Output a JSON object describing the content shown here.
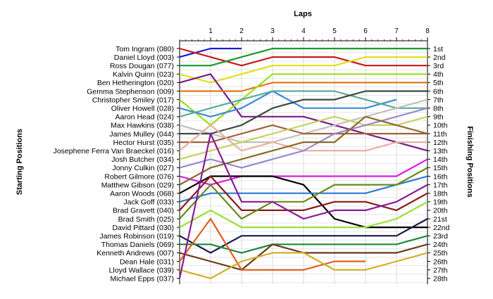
{
  "chart_data": {
    "type": "line",
    "title": "Laps",
    "xlabel": "Laps",
    "ylabel_left": "Starting Positions",
    "ylabel_right": "Finishing Positions",
    "x_ticks": [
      1,
      2,
      3,
      4,
      5,
      6,
      7,
      8
    ],
    "xlim": [
      0,
      8
    ],
    "ylim": [
      1,
      28
    ],
    "grid": true,
    "finish_labels": [
      "1st",
      "2nd",
      "3rd",
      "4th",
      "5th",
      "6th",
      "7th",
      "8th",
      "9th",
      "10th",
      "11th",
      "12th",
      "13th",
      "14th",
      "15th",
      "16th",
      "17th",
      "18th",
      "19th",
      "20th",
      "21st",
      "22nd",
      "23rd",
      "24th",
      "25th",
      "26th",
      "27th",
      "28th"
    ],
    "series": [
      {
        "name": "Tom Ingram (080)",
        "color": "#1a1acc",
        "positions": [
          2,
          1,
          1
        ]
      },
      {
        "name": "Daniel Lloyd (003)",
        "color": "#cc1a1a",
        "positions": [
          1,
          2,
          3,
          2,
          2,
          2,
          3,
          3,
          3
        ]
      },
      {
        "name": "Ross Dougan (077)",
        "color": "#1a9a2a",
        "positions": [
          3,
          3,
          2,
          1,
          1,
          1,
          1,
          1,
          1
        ]
      },
      {
        "name": "Kalvin Quinn (023)",
        "color": "#e0e01a",
        "positions": [
          4,
          5,
          4,
          3,
          3,
          3,
          2,
          2,
          2
        ]
      },
      {
        "name": "Ben Hetherington (020)",
        "color": "#7a1a8a",
        "positions": [
          5,
          4,
          9,
          9,
          9,
          10,
          11,
          12,
          13
        ]
      },
      {
        "name": "Gemma Stephenson (009)",
        "color": "#e07a1a",
        "positions": [
          6,
          6,
          6,
          5,
          5,
          5,
          5,
          5,
          5
        ]
      },
      {
        "name": "Christopher Smiley (017)",
        "color": "#9ae01a",
        "positions": [
          7,
          10,
          7,
          4,
          4,
          4,
          4,
          4,
          4
        ]
      },
      {
        "name": "Oliver Howell (028)",
        "color": "#3a8ad8",
        "positions": [
          8,
          9,
          8,
          6,
          8,
          8,
          8,
          7
        ]
      },
      {
        "name": "Aaron Head (024)",
        "color": "#5aaa9a",
        "positions": [
          9,
          8,
          7,
          6,
          6,
          6,
          7,
          8,
          8
        ]
      },
      {
        "name": "Max Hawkins (038)",
        "color": "#c0c0c0",
        "positions": [
          10,
          11,
          12,
          12,
          11,
          10,
          9,
          8,
          7
        ]
      },
      {
        "name": "James Mulley (044)",
        "color": "#3a4a3a",
        "positions": [
          11,
          11,
          10,
          8,
          7,
          7,
          6,
          6,
          6
        ]
      },
      {
        "name": "Hector Hurst (035)",
        "color": "#a0603a",
        "positions": [
          12,
          12,
          11,
          10,
          11,
          11,
          11,
          11,
          11
        ]
      },
      {
        "name": "Josephene Ferra Van Braeckel (016)",
        "color": "#e8b0a0",
        "positions": [
          13,
          10,
          13,
          12,
          13,
          13,
          13,
          12,
          12
        ]
      },
      {
        "name": "Josh Butcher (034)",
        "color": "#c8d060",
        "positions": [
          14,
          13,
          12,
          11,
          10,
          9,
          10,
          10,
          9
        ]
      },
      {
        "name": "Jonny Culkin (027)",
        "color": "#9a8acc",
        "positions": [
          15,
          14,
          15,
          14,
          13,
          11,
          10,
          9,
          8
        ]
      },
      {
        "name": "Robert Gilmore (076)",
        "color": "#e01ae0",
        "positions": [
          16,
          17,
          16,
          16,
          16,
          16,
          16,
          16,
          14
        ]
      },
      {
        "name": "Matthew Gibson (029)",
        "color": "#8a6a2a",
        "positions": [
          17,
          15,
          14,
          13,
          12,
          12,
          9,
          10,
          11
        ]
      },
      {
        "name": "Aaron Woods (068)",
        "color": "#000000",
        "positions": [
          18,
          16,
          16,
          16,
          17,
          21,
          22,
          22,
          22
        ]
      },
      {
        "name": "Jack Goff (033)",
        "color": "#2a7ad8",
        "positions": [
          19,
          18,
          18,
          18,
          18,
          18,
          18,
          17,
          16
        ]
      },
      {
        "name": "Brad Gravett (040)",
        "color": "#8a1a1a",
        "positions": [
          20,
          16,
          20,
          20,
          20,
          19,
          19,
          20,
          18
        ]
      },
      {
        "name": "Brad Smith (025)",
        "color": "#6a8a1a",
        "positions": [
          21,
          17,
          21,
          19,
          19,
          17,
          17,
          17,
          15
        ]
      },
      {
        "name": "David Pittard (030)",
        "color": "#9ae03a",
        "positions": [
          22,
          20,
          22,
          22,
          22,
          22,
          22,
          21,
          19
        ]
      },
      {
        "name": "James Robinson (019)",
        "color": "#1a1a4a",
        "positions": [
          23,
          25,
          23,
          23,
          23,
          23,
          23,
          23,
          21
        ]
      },
      {
        "name": "Thomas Daniels (069)",
        "color": "#1a8a3a",
        "positions": [
          24,
          24,
          25,
          24,
          24,
          24,
          24,
          24,
          23
        ]
      },
      {
        "name": "Kenneth Andrews (007)",
        "color": "#6a3a1a",
        "positions": [
          25,
          26,
          27,
          24,
          25,
          25,
          25,
          25,
          24
        ]
      },
      {
        "name": "Dean Hale (031)",
        "color": "#e0601a",
        "positions": [
          26,
          21,
          27,
          27,
          27,
          26,
          26
        ]
      },
      {
        "name": "Lloyd Wallace (039)",
        "color": "#d0b02a",
        "positions": [
          27,
          28,
          26,
          25,
          25,
          27,
          27,
          26,
          25
        ]
      },
      {
        "name": "Michael Epps (037)",
        "color": "#8a1a9a",
        "positions": [
          28,
          11,
          19,
          19,
          21,
          20,
          20,
          19,
          17
        ]
      }
    ]
  }
}
